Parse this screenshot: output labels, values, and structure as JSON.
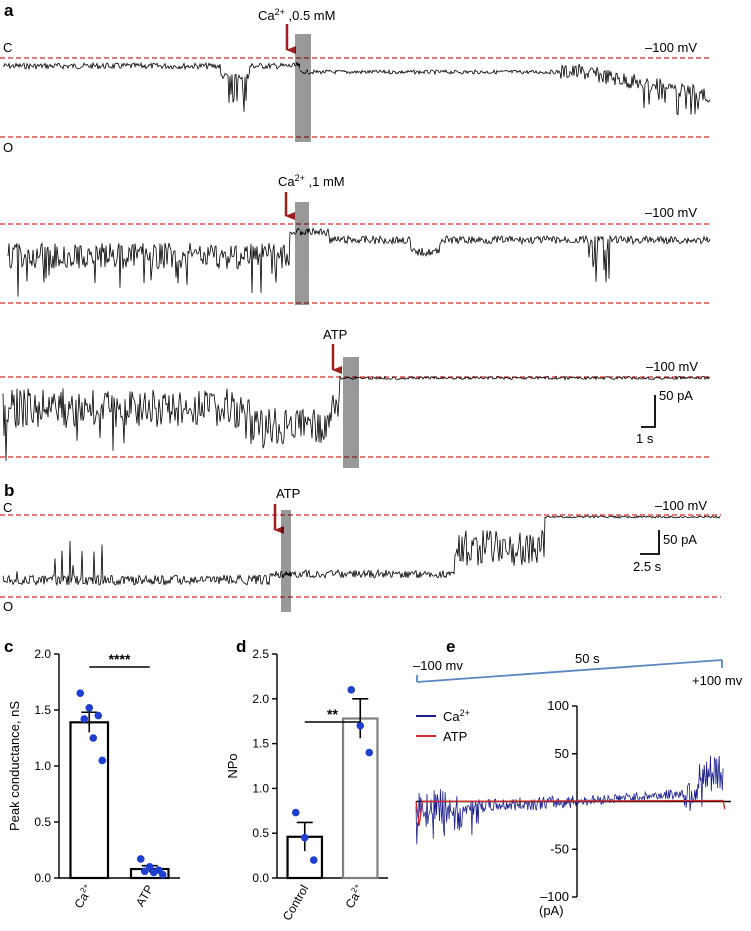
{
  "panels": {
    "a": {
      "label": "a",
      "traces": [
        {
          "id": "a1",
          "closed_label": "C",
          "open_label": "O",
          "voltage": "–100 mV",
          "arrow_label_base": "Ca",
          "arrow_label_sup": "2+",
          "arrow_label_rest": " ,0.5 mM"
        },
        {
          "id": "a2",
          "voltage": "–100 mV",
          "arrow_label_base": "Ca",
          "arrow_label_sup": "2+",
          "arrow_label_rest": " ,1 mM"
        },
        {
          "id": "a3",
          "voltage": "–100 mV",
          "arrow_label_base": "ATP",
          "arrow_label_sup": "",
          "arrow_label_rest": ""
        }
      ],
      "scale_current": "50 pA",
      "scale_time": "1 s"
    },
    "b": {
      "label": "b",
      "closed_label": "C",
      "open_label": "O",
      "voltage": "–100 mV",
      "arrow_label": "ATP",
      "scale_current": "50 pA",
      "scale_time": "2.5 s"
    },
    "e": {
      "label": "e",
      "ramp_start": "–100 mv",
      "ramp_end": "+100 mv",
      "ramp_duration": "50 s",
      "unit_label": "(pA)"
    }
  },
  "colors": {
    "dashed_line": "#d42a2a",
    "arrow": "#a01e1e",
    "dots": "#1f3fd0",
    "ca_trace": "#1a1f8c",
    "atp_trace": "#d42a2a",
    "ramp": "#5b87c0",
    "control_bar": "#000000",
    "ca_bar_d": "#808080"
  },
  "chart_data": [
    {
      "panel": "c",
      "type": "bar",
      "ylabel": "Peak conductance, nS",
      "ylim": [
        0,
        2.0
      ],
      "yticks": [
        "0.0",
        "0.5",
        "1.0",
        "1.5",
        "2.0"
      ],
      "categories": [
        {
          "base": "Ca",
          "sup": "2+"
        },
        {
          "base": "ATP",
          "sup": ""
        }
      ],
      "values": [
        1.39,
        0.08
      ],
      "sem": [
        0.09,
        0.03
      ],
      "points": [
        [
          1.65,
          1.52,
          1.45,
          1.42,
          1.25,
          1.05
        ],
        [
          0.17,
          0.1,
          0.07,
          0.06,
          0.05,
          0.03
        ]
      ],
      "significance": "****"
    },
    {
      "panel": "d",
      "type": "bar",
      "ylabel": "NPo",
      "ylim": [
        0,
        2.5
      ],
      "yticks": [
        "0.0",
        "0.5",
        "1.0",
        "1.5",
        "2.0",
        "2.5"
      ],
      "categories": [
        {
          "base": "Control",
          "sup": ""
        },
        {
          "base": "Ca",
          "sup": "2+"
        }
      ],
      "values": [
        0.46,
        1.78
      ],
      "sem": [
        0.16,
        0.22
      ],
      "points": [
        [
          0.73,
          0.45,
          0.2
        ],
        [
          2.1,
          1.7,
          1.4
        ]
      ],
      "significance": "**"
    },
    {
      "panel": "e",
      "type": "line",
      "ylim": [
        -100,
        100
      ],
      "yticks": [
        "100",
        "50",
        "-50",
        "–100"
      ],
      "ytick_values": [
        100,
        50,
        -50,
        -100
      ],
      "xlim": [
        -100,
        100
      ],
      "series": [
        {
          "name_base": "Ca",
          "name_sup": "2+",
          "key": "ca"
        },
        {
          "name_base": "ATP",
          "name_sup": "",
          "key": "atp"
        }
      ]
    }
  ]
}
